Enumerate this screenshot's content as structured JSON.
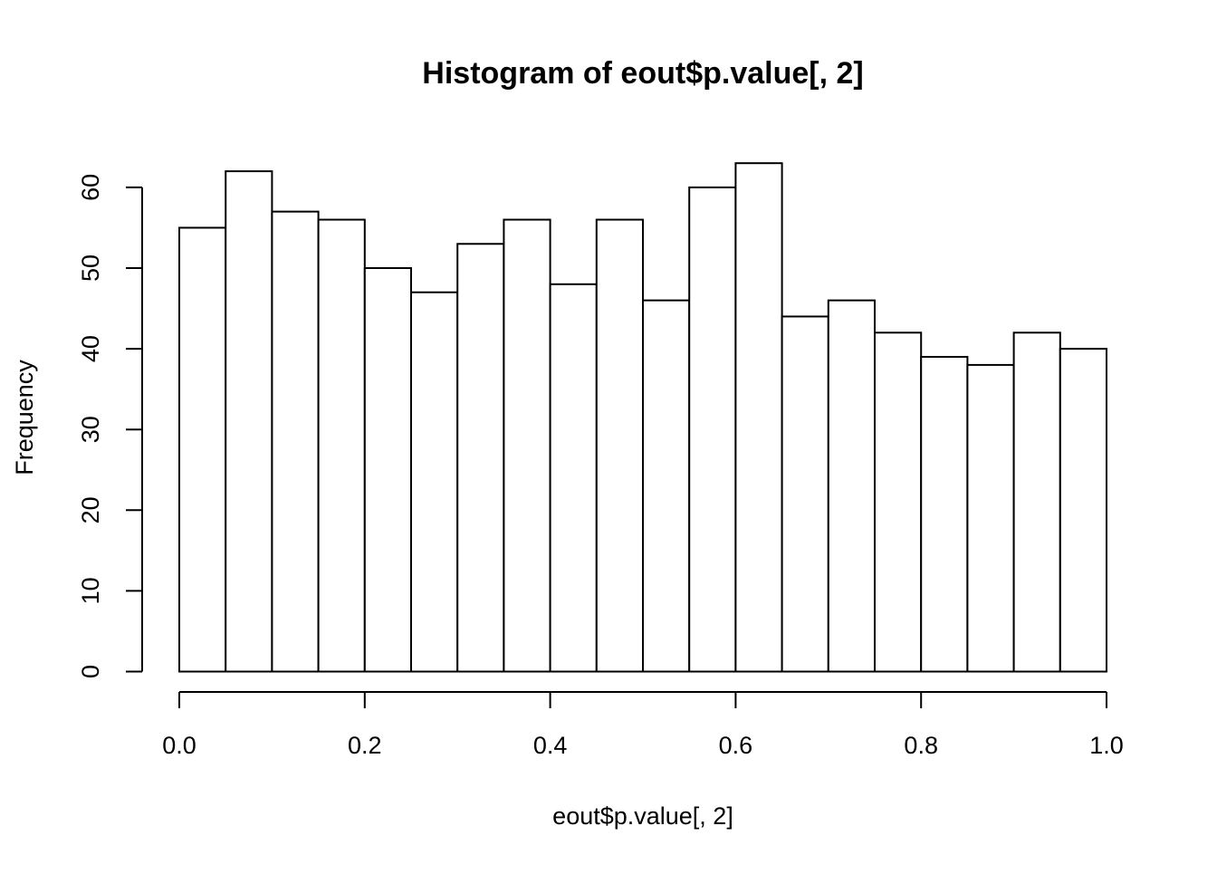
{
  "chart_data": {
    "type": "bar",
    "title": "Histogram of eout$p.value[, 2]",
    "xlabel": "eout$p.value[, 2]",
    "ylabel": "Frequency",
    "bins": [
      {
        "from": 0.0,
        "to": 0.05,
        "count": 55
      },
      {
        "from": 0.05,
        "to": 0.1,
        "count": 62
      },
      {
        "from": 0.1,
        "to": 0.15,
        "count": 57
      },
      {
        "from": 0.15,
        "to": 0.2,
        "count": 56
      },
      {
        "from": 0.2,
        "to": 0.25,
        "count": 50
      },
      {
        "from": 0.25,
        "to": 0.3,
        "count": 47
      },
      {
        "from": 0.3,
        "to": 0.35,
        "count": 53
      },
      {
        "from": 0.35,
        "to": 0.4,
        "count": 56
      },
      {
        "from": 0.4,
        "to": 0.45,
        "count": 48
      },
      {
        "from": 0.45,
        "to": 0.5,
        "count": 56
      },
      {
        "from": 0.5,
        "to": 0.55,
        "count": 46
      },
      {
        "from": 0.55,
        "to": 0.6,
        "count": 60
      },
      {
        "from": 0.6,
        "to": 0.65,
        "count": 63
      },
      {
        "from": 0.65,
        "to": 0.7,
        "count": 44
      },
      {
        "from": 0.7,
        "to": 0.75,
        "count": 46
      },
      {
        "from": 0.75,
        "to": 0.8,
        "count": 42
      },
      {
        "from": 0.8,
        "to": 0.85,
        "count": 39
      },
      {
        "from": 0.85,
        "to": 0.9,
        "count": 38
      },
      {
        "from": 0.9,
        "to": 0.95,
        "count": 42
      },
      {
        "from": 0.95,
        "to": 1.0,
        "count": 40
      }
    ],
    "xlim": [
      0,
      1
    ],
    "ylim": [
      0,
      60
    ],
    "x_ticks": [
      "0.0",
      "0.2",
      "0.4",
      "0.6",
      "0.8",
      "1.0"
    ],
    "y_ticks": [
      "0",
      "10",
      "20",
      "30",
      "40",
      "50",
      "60"
    ],
    "grid": false,
    "bar_fill": "#ffffff",
    "bar_stroke": "#000000"
  }
}
